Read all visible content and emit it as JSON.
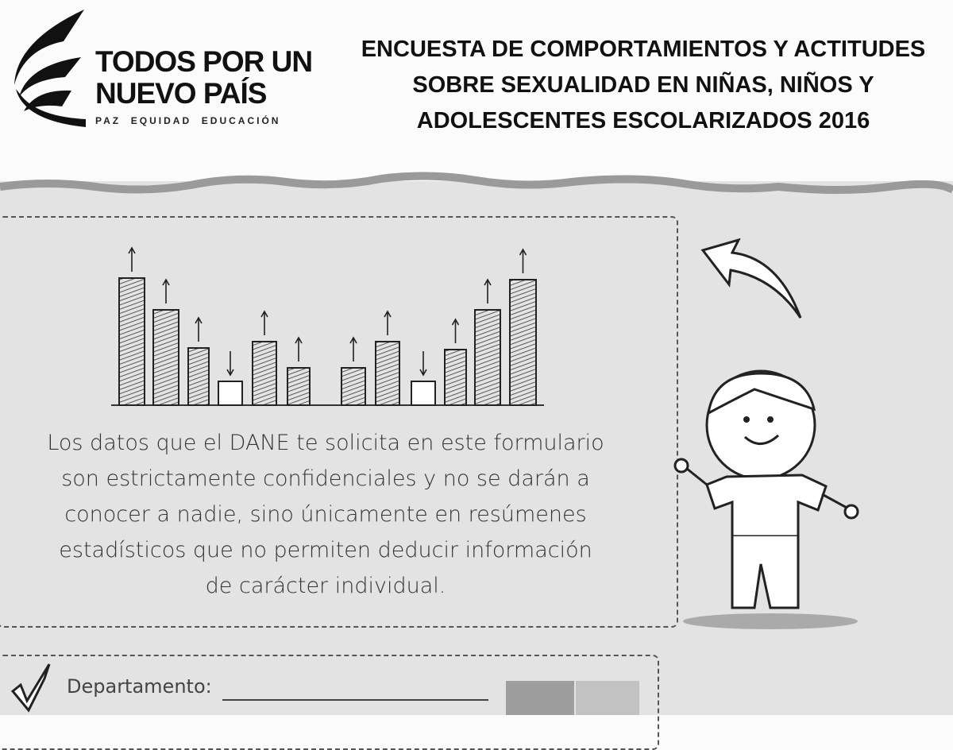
{
  "logo": {
    "line1": "TODOS POR UN",
    "line2": "NUEVO PAÍS",
    "tagline": "PAZ  EQUIDAD  EDUCACIÓN"
  },
  "header": {
    "title_lines": [
      "ENCUESTA DE COMPORTAMIENTOS Y ACTITUDES",
      "SOBRE SEXUALIDAD EN NIÑAS, NIÑOS Y",
      "ADOLESCENTES ESCOLARIZADOS 2016"
    ]
  },
  "notice": {
    "lines": [
      "Los datos que el DANE te solicita en este formulario",
      "son estrictamente confidenciales y no se darán a",
      "conocer a nadie, sino únicamente en resúmenes",
      "estadísticos que no permiten deducir información",
      "de carácter individual."
    ]
  },
  "form": {
    "department_label": "Departamento:",
    "department_value": ""
  },
  "colors": {
    "paper": "#e3e3e3",
    "ink": "#222222"
  }
}
